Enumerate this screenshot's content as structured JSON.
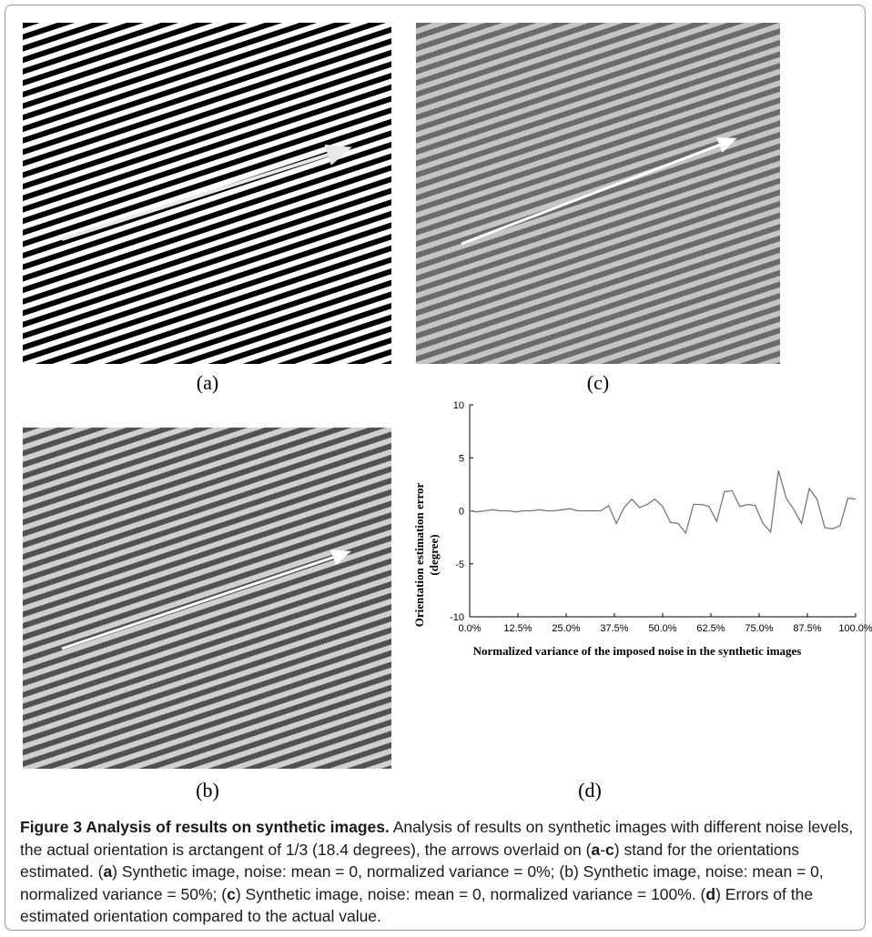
{
  "panels": {
    "a": {
      "label": "(a)"
    },
    "b": {
      "label": "(b)"
    },
    "c": {
      "label": "(c)"
    },
    "d": {
      "label": "(d)"
    }
  },
  "chart_data": {
    "type": "line",
    "title": "",
    "xlabel": "Normalized variance of the imposed noise in the synthetic images",
    "ylabel": "Orientation estimation error (degree)",
    "ylabel_lines": [
      "Orientation estimation error",
      "(degree)"
    ],
    "xlim": [
      0,
      100
    ],
    "ylim": [
      -10,
      10
    ],
    "x_ticks": [
      0,
      12.5,
      25,
      37.5,
      50,
      62.5,
      75,
      87.5,
      100
    ],
    "x_tick_labels": [
      "0.0%",
      "12.5%",
      "25.0%",
      "37.5%",
      "50.0%",
      "62.5%",
      "75.0%",
      "87.5%",
      "100.0%"
    ],
    "y_ticks": [
      -10,
      -5,
      0,
      5,
      10
    ],
    "y_tick_labels": [
      "-10",
      "-5",
      "0",
      "5",
      "10"
    ],
    "grid": false,
    "series": [
      {
        "color": "#777777",
        "x": [
          0,
          2,
          4,
          6,
          8,
          10,
          12,
          14,
          16,
          18,
          20,
          22,
          24,
          26,
          28,
          30,
          32,
          34,
          36,
          38,
          40,
          42,
          44,
          46,
          48,
          50,
          52,
          54,
          56,
          58,
          60,
          62,
          64,
          66,
          68,
          70,
          72,
          74,
          76,
          78,
          80,
          82,
          84,
          86,
          88,
          90,
          92,
          94,
          96,
          98,
          100
        ],
        "y": [
          0,
          -0.1,
          0,
          0.1,
          0,
          0,
          -0.1,
          0,
          0,
          0.1,
          0,
          0,
          0.1,
          0.2,
          0,
          0,
          0,
          0,
          0.5,
          -1.2,
          0.3,
          1.1,
          0.3,
          0.6,
          1.1,
          0.4,
          -1.1,
          -1.2,
          -2.1,
          0.6,
          0.6,
          0.4,
          -1,
          1.8,
          1.9,
          0.4,
          0.6,
          0.5,
          -1.2,
          -2,
          3.8,
          1.2,
          0.1,
          -1.2,
          2.1,
          1.1,
          -1.6,
          -1.7,
          -1.4,
          1.2,
          1.1
        ]
      }
    ]
  },
  "caption": {
    "title": "Figure 3 Analysis of results on synthetic images.",
    "s1": " Analysis of results on synthetic images with different noise levels, the actual orientation is arctangent of 1/3 (18.4 degrees), the arrows overlaid on (",
    "s1a": "a",
    "s1b": "-",
    "s1c": "c",
    "s2": ") stand for the orientations estimated. (",
    "s2a": "a",
    "s3": ") Synthetic image, noise: mean = 0, normalized variance = 0%; (b) Synthetic image, noise: mean = 0, normalized variance = 50%; (",
    "s3a": "c",
    "s4": ") Synthetic image, noise: mean = 0, normalized variance = 100%. (",
    "s4a": "d",
    "s5": ") Errors of the estimated orientation compared to the actual value."
  }
}
